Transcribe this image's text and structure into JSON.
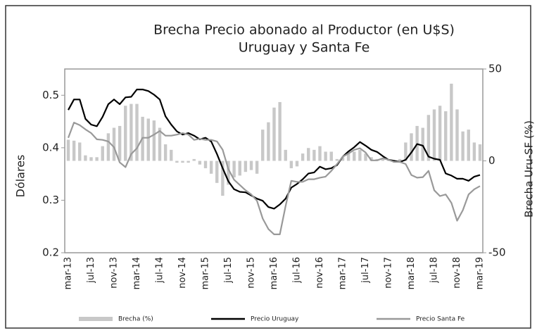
{
  "chart_data": {
    "type": "combo",
    "title": "Brecha Precio abonado al Productor (en U$S)",
    "subtitle": "Uruguay y Santa Fe",
    "y_label": "Dólares",
    "y2_label": "Brecha Uru-SF (%)",
    "categories": [
      "mar-13",
      null,
      null,
      null,
      "jul-13",
      null,
      null,
      null,
      "nov-13",
      null,
      null,
      null,
      "mar-14",
      null,
      null,
      null,
      "jul-14",
      null,
      null,
      null,
      "nov-14",
      null,
      null,
      null,
      "mar-15",
      null,
      null,
      null,
      "jul-15",
      null,
      null,
      null,
      "nov-15",
      null,
      null,
      null,
      "mar-16",
      null,
      null,
      null,
      "jul-16",
      null,
      null,
      null,
      "nov-16",
      null,
      null,
      null,
      "mar-17",
      null,
      null,
      null,
      "jul-17",
      null,
      null,
      null,
      "nov-17",
      null,
      null,
      null,
      "mar-18",
      null,
      null,
      null,
      "jul-18",
      null,
      null,
      null,
      "nov-18",
      null,
      null,
      null,
      "mar-19"
    ],
    "series": [
      {
        "name": "Brecha (%)",
        "type": "bar",
        "axis": "y2",
        "color": "#c8c8c8",
        "values": [
          11.5,
          11,
          10,
          3,
          2,
          2,
          8,
          15,
          18,
          19,
          30,
          31,
          31,
          24,
          23,
          22,
          18,
          9,
          6,
          -1,
          -1,
          -1,
          1,
          -2,
          -4,
          -7,
          -12,
          -19,
          -13,
          -9,
          -8,
          -6,
          -5,
          -7,
          17,
          21,
          29,
          32,
          6,
          -4,
          -3,
          4,
          7,
          6,
          8,
          5,
          5,
          1,
          2,
          5,
          5,
          6,
          4,
          2,
          1,
          1,
          1,
          -1,
          1,
          10,
          15,
          19,
          18,
          25,
          28,
          30,
          27,
          42,
          28,
          16,
          17,
          10,
          9
        ]
      },
      {
        "name": "Precio Uruguay",
        "type": "line",
        "color": "#000000",
        "values": [
          0.472,
          0.492,
          0.492,
          0.455,
          0.444,
          0.441,
          0.459,
          0.483,
          0.492,
          0.483,
          0.496,
          0.497,
          0.511,
          0.511,
          0.508,
          0.501,
          0.492,
          0.46,
          0.444,
          0.431,
          0.425,
          0.428,
          0.423,
          0.416,
          0.419,
          0.412,
          0.388,
          0.361,
          0.336,
          0.321,
          0.316,
          0.315,
          0.309,
          0.303,
          0.299,
          0.287,
          0.284,
          0.292,
          0.303,
          0.324,
          0.331,
          0.34,
          0.351,
          0.353,
          0.364,
          0.359,
          0.361,
          0.367,
          0.383,
          0.393,
          0.401,
          0.411,
          0.404,
          0.396,
          0.392,
          0.384,
          0.377,
          0.375,
          0.373,
          0.377,
          0.391,
          0.407,
          0.404,
          0.383,
          0.379,
          0.377,
          0.351,
          0.347,
          0.341,
          0.341,
          0.337,
          0.345,
          0.348
        ]
      },
      {
        "name": "Precio Santa Fe",
        "type": "line",
        "color": "#999999",
        "values": [
          0.419,
          0.448,
          0.443,
          0.435,
          0.428,
          0.416,
          0.415,
          0.412,
          0.401,
          0.372,
          0.363,
          0.388,
          0.399,
          0.419,
          0.419,
          0.425,
          0.432,
          0.423,
          0.423,
          0.425,
          0.428,
          0.425,
          0.415,
          0.417,
          0.415,
          0.415,
          0.412,
          0.396,
          0.359,
          0.339,
          0.329,
          0.319,
          0.311,
          0.299,
          0.265,
          0.245,
          0.235,
          0.235,
          0.289,
          0.337,
          0.335,
          0.335,
          0.34,
          0.34,
          0.343,
          0.345,
          0.356,
          0.369,
          0.383,
          0.389,
          0.396,
          0.399,
          0.391,
          0.376,
          0.376,
          0.38,
          0.377,
          0.373,
          0.373,
          0.369,
          0.348,
          0.343,
          0.344,
          0.356,
          0.319,
          0.308,
          0.311,
          0.295,
          0.261,
          0.281,
          0.311,
          0.321,
          0.327
        ]
      }
    ],
    "ylim": [
      0.2,
      0.55
    ],
    "yticks": [
      0.2,
      0.3,
      0.4,
      0.5
    ],
    "y2lim": [
      -50,
      50
    ],
    "y2ticks": [
      -50,
      0,
      50
    ],
    "legend": "bottom",
    "grid": false
  }
}
